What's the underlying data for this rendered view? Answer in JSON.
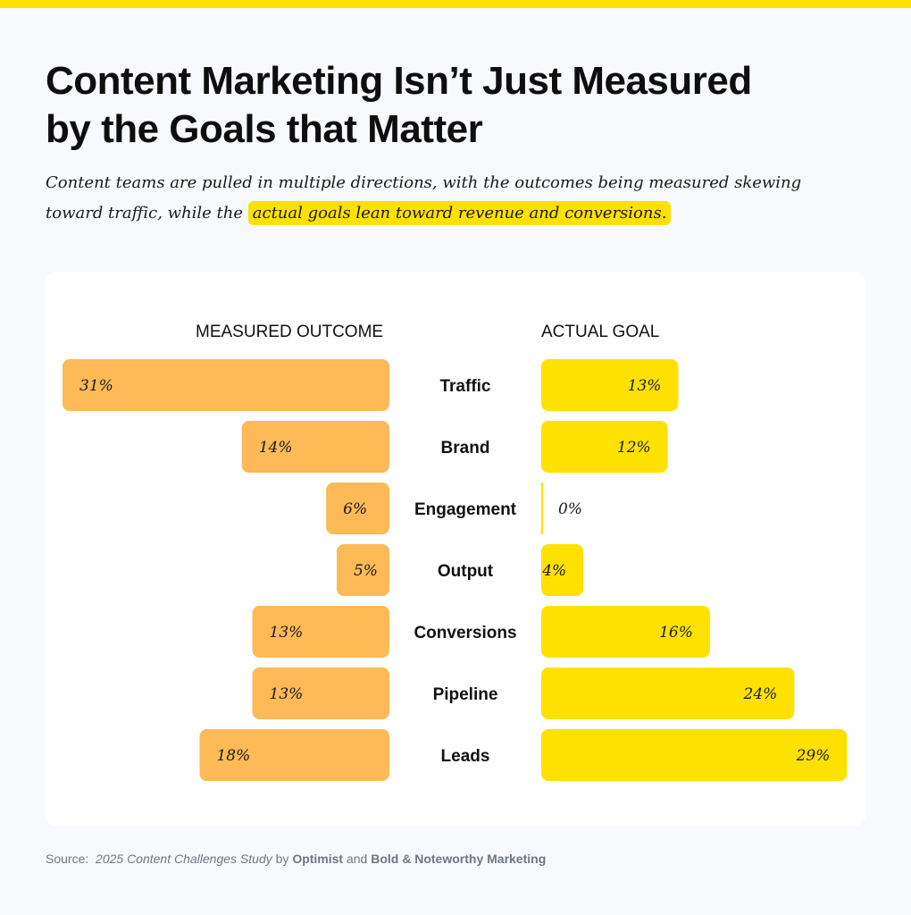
{
  "header": {
    "title_line1": "Content Marketing Isn’t Just Measured",
    "title_line2": "by the Goals that Matter",
    "subtitle_plain": "Content teams are pulled in multiple directions, with the outcomes being measured skewing toward traffic, while the ",
    "subtitle_highlight": "actual goals lean toward revenue and conversions."
  },
  "chart_data": {
    "type": "bar",
    "orientation": "horizontal-diverging",
    "categories": [
      "Traffic",
      "Brand",
      "Engagement",
      "Output",
      "Conversions",
      "Pipeline",
      "Leads"
    ],
    "series": [
      {
        "name": "MEASURED OUTCOME",
        "side": "left",
        "values": [
          31,
          14,
          6,
          5,
          13,
          13,
          18
        ],
        "labels": [
          "31%",
          "14%",
          "6%",
          "5%",
          "13%",
          "13%",
          "18%"
        ]
      },
      {
        "name": "ACTUAL GOAL",
        "side": "right",
        "values": [
          13,
          12,
          0,
          4,
          16,
          24,
          29
        ],
        "labels": [
          "13%",
          "12%",
          "0%",
          "4%",
          "16%",
          "24%",
          "29%"
        ]
      }
    ],
    "xlim": [
      0,
      31
    ],
    "unit": "%",
    "colors": {
      "measured": "#fdba57",
      "actual": "#ffe100"
    }
  },
  "source": {
    "prefix": "Source:",
    "study": "2025 Content Challenges Study",
    "by": "by",
    "org1": "Optimist",
    "and": "and",
    "org2": "Bold & Noteworthy Marketing"
  },
  "colors": {
    "accent": "#ffe100",
    "page_bg": "#f8f9fd",
    "card_bg": "#ffffff"
  }
}
